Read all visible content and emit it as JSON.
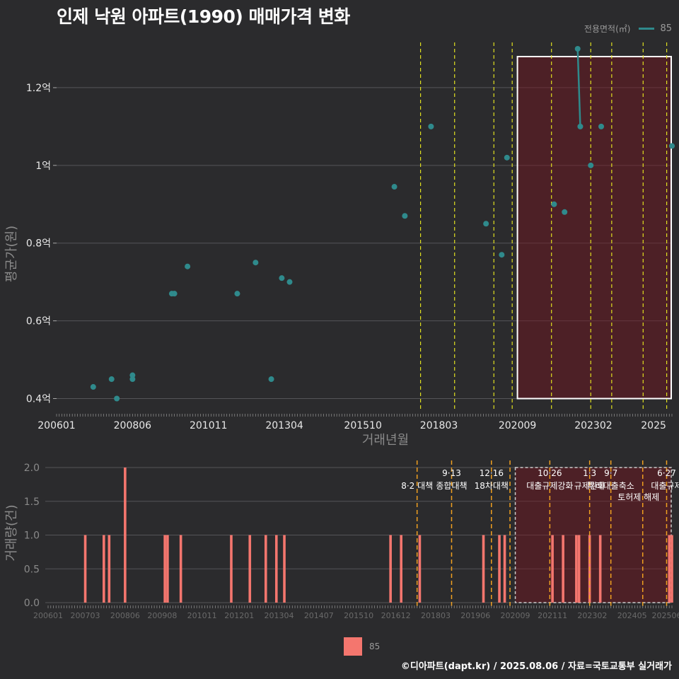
{
  "title": "인제 낙원 아파트(1990) 매매가격 변화",
  "footer": "©디아파트(dapt.kr) / 2025.08.06 / 자료=국토교통부 실거래가",
  "legend": {
    "title": "전용면적(㎡)",
    "label": "85",
    "color": "#2f8a8c"
  },
  "bottom_legend": {
    "label": "85",
    "color": "#f4766e"
  },
  "chart_data": [
    {
      "type": "scatter",
      "xlabel": "거래년월",
      "ylabel": "평균가(원)",
      "x_tick_labels": [
        "200601",
        "200806",
        "201011",
        "201304",
        "201510",
        "201803",
        "202009",
        "202302",
        "2025"
      ],
      "y_tick_labels": [
        "0.4억",
        "0.6억",
        "0.8억",
        "1억",
        "1.2억"
      ],
      "y_ticks": [
        0.4,
        0.6,
        0.8,
        1.0,
        1.2
      ],
      "ylim": [
        0.37,
        1.32
      ],
      "xlim": [
        "2006-01",
        "2025-08"
      ],
      "series": [
        {
          "name": "85",
          "color": "#2f8a8c",
          "points": [
            {
              "x": "2007-03",
              "y": 0.43
            },
            {
              "x": "2007-10",
              "y": 0.45
            },
            {
              "x": "2007-12",
              "y": 0.4
            },
            {
              "x": "2008-06",
              "y": 0.46
            },
            {
              "x": "2008-06",
              "y": 0.45
            },
            {
              "x": "2009-09",
              "y": 0.67
            },
            {
              "x": "2009-10",
              "y": 0.67
            },
            {
              "x": "2010-03",
              "y": 0.74
            },
            {
              "x": "2011-10",
              "y": 0.67
            },
            {
              "x": "2012-05",
              "y": 0.75
            },
            {
              "x": "2012-11",
              "y": 0.45
            },
            {
              "x": "2013-03",
              "y": 0.71
            },
            {
              "x": "2013-06",
              "y": 0.7
            },
            {
              "x": "2016-10",
              "y": 0.945
            },
            {
              "x": "2017-02",
              "y": 0.87
            },
            {
              "x": "2017-12",
              "y": 1.1
            },
            {
              "x": "2019-09",
              "y": 0.85
            },
            {
              "x": "2020-03",
              "y": 0.77
            },
            {
              "x": "2020-05",
              "y": 1.02
            },
            {
              "x": "2021-11",
              "y": 0.9
            },
            {
              "x": "2022-03",
              "y": 0.88
            },
            {
              "x": "2022-08",
              "y": 1.3
            },
            {
              "x": "2022-09",
              "y": 1.1
            },
            {
              "x": "2023-01",
              "y": 1.0
            },
            {
              "x": "2023-05",
              "y": 1.1
            },
            {
              "x": "2025-08",
              "y": 1.05
            }
          ],
          "line_segment": [
            {
              "x": "2022-08",
              "y": 1.3
            },
            {
              "x": "2022-09",
              "y": 1.1
            }
          ]
        }
      ],
      "highlight_box": {
        "x_start": "2020-09",
        "x_end": "2025-08",
        "y_start": 0.4,
        "y_end": 1.32
      },
      "vlines": [
        "2017-08",
        "2018-09",
        "2019-12",
        "2020-07",
        "2021-10",
        "2023-01",
        "2023-09",
        "2024-09",
        "2025-06"
      ]
    },
    {
      "type": "bar",
      "xlabel": "",
      "ylabel": "거래량(건)",
      "x_tick_labels": [
        "200601",
        "200703",
        "200806",
        "200908",
        "201011",
        "201201",
        "201304",
        "201407",
        "201510",
        "201612",
        "201803",
        "201906",
        "202009",
        "202111",
        "202302",
        "202405",
        "202506"
      ],
      "y_tick_labels": [
        "0.0",
        "0.5",
        "1.0",
        "1.5",
        "2.0"
      ],
      "y_ticks": [
        0,
        0.5,
        1,
        1.5,
        2
      ],
      "ylim": [
        0,
        2
      ],
      "xlim": [
        "2006-01",
        "2025-08"
      ],
      "bars": [
        {
          "x": "2007-03",
          "y": 1
        },
        {
          "x": "2007-10",
          "y": 1
        },
        {
          "x": "2007-12",
          "y": 1
        },
        {
          "x": "2008-06",
          "y": 2
        },
        {
          "x": "2009-09",
          "y": 1
        },
        {
          "x": "2009-10",
          "y": 1
        },
        {
          "x": "2010-03",
          "y": 1
        },
        {
          "x": "2011-10",
          "y": 1
        },
        {
          "x": "2012-05",
          "y": 1
        },
        {
          "x": "2012-11",
          "y": 1
        },
        {
          "x": "2013-03",
          "y": 1
        },
        {
          "x": "2013-06",
          "y": 1
        },
        {
          "x": "2016-10",
          "y": 1
        },
        {
          "x": "2017-02",
          "y": 1
        },
        {
          "x": "2017-09",
          "y": 1
        },
        {
          "x": "2019-09",
          "y": 1
        },
        {
          "x": "2020-03",
          "y": 1
        },
        {
          "x": "2020-05",
          "y": 1
        },
        {
          "x": "2021-11",
          "y": 1
        },
        {
          "x": "2022-03",
          "y": 1
        },
        {
          "x": "2022-08",
          "y": 1
        },
        {
          "x": "2022-09",
          "y": 1
        },
        {
          "x": "2023-01",
          "y": 1
        },
        {
          "x": "2023-05",
          "y": 1
        },
        {
          "x": "2025-07",
          "y": 1
        },
        {
          "x": "2025-08",
          "y": 1
        }
      ],
      "highlight_box": {
        "x_start": "2020-09",
        "x_end": "2025-08",
        "y_start": 0,
        "y_end": 2
      },
      "vlines": [
        {
          "x": "2017-08",
          "label": "8·2 대책",
          "date": ""
        },
        {
          "x": "2018-09",
          "label": "종합대책",
          "date": "9·13"
        },
        {
          "x": "2019-12",
          "label": "18차대책",
          "date": "12·16"
        },
        {
          "x": "2020-07",
          "label": "",
          "date": ""
        },
        {
          "x": "2021-10",
          "label": "대출규제강화",
          "date": "10·26"
        },
        {
          "x": "2023-01",
          "label": "규제완화",
          "date": "1·3"
        },
        {
          "x": "2023-09",
          "label": "특례대출축소",
          "date": "9·7"
        },
        {
          "x": "2024-09",
          "label": "",
          "date": ""
        },
        {
          "x": "2025-06",
          "label": "대출규제",
          "date": "6·27"
        }
      ],
      "annotation_extra": "토허제 해제"
    }
  ]
}
